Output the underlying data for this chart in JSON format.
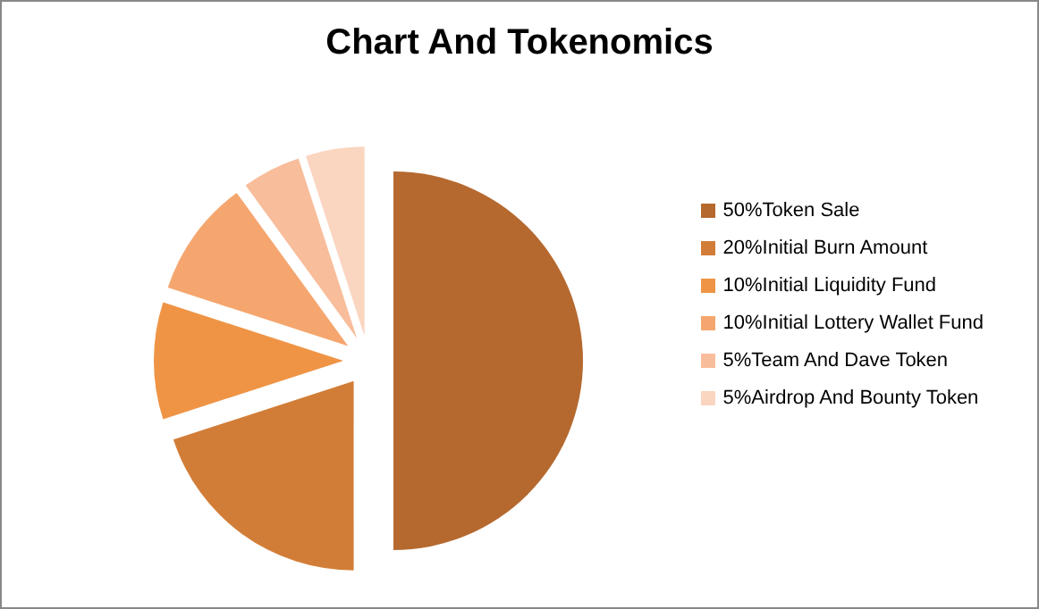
{
  "chart_data": {
    "type": "pie",
    "title": "Chart And Tokenomics",
    "categories": [
      "50%Token Sale",
      "20%Initial Burn Amount",
      "10%Initial Liquidity Fund",
      "10%Initial Lottery Wallet Fund",
      "5%Team And Dave Token",
      "5%Airdrop And Bounty Token"
    ],
    "values": [
      50,
      20,
      10,
      10,
      5,
      5
    ],
    "colors": [
      "#b5692f",
      "#d27d37",
      "#ef9445",
      "#f5a66e",
      "#f8bd9a",
      "#fad5c0"
    ],
    "legend": "right"
  }
}
